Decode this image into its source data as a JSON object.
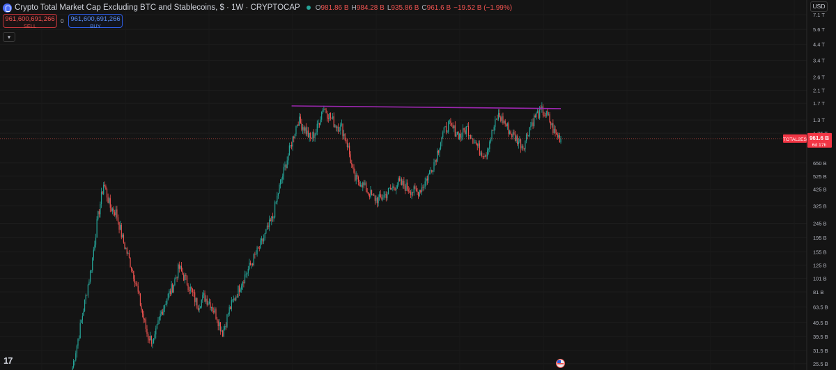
{
  "header": {
    "title": "Crypto Total Market Cap Excluding BTC and Stablecoins, $ · 1W · CRYPTOCAP",
    "open_key": "O",
    "open": "981.86 B",
    "high_key": "H",
    "high": "984.28 B",
    "low_key": "L",
    "low": "935.86 B",
    "close_key": "C",
    "close": "961.6 B",
    "change": "−19.52 B (−1.99%)"
  },
  "trade": {
    "sell_price": "961,600,691,266",
    "sell_label": "SELL",
    "spread": "0",
    "buy_price": "961,600,691,266",
    "buy_label": "BUY"
  },
  "currency": "USD",
  "logo_text": "17",
  "colors": {
    "background": "#141414",
    "up": "#26a69a",
    "down": "#ef5350",
    "trendline": "#9c27b0",
    "price_label": "#f23645"
  },
  "chart_data": {
    "type": "candlestick",
    "symbol": "TOTAL2ES",
    "timeframe": "1W",
    "scale": "log",
    "y_ticks": [
      "7.1 T",
      "5.6 T",
      "4.4 T",
      "3.4 T",
      "2.6 T",
      "2.1 T",
      "1.7 T",
      "1.3 T",
      "1.05 T",
      "650 B",
      "525 B",
      "425 B",
      "325 B",
      "245 B",
      "195 B",
      "155 B",
      "125 B",
      "101 B",
      "81 B",
      "63.5 B",
      "49.5 B",
      "39.5 B",
      "31.5 B",
      "25.5 B"
    ],
    "y_tick_values": [
      7100,
      5600,
      4400,
      3400,
      2600,
      2100,
      1700,
      1300,
      1050,
      650,
      525,
      425,
      325,
      245,
      195,
      155,
      125,
      101,
      81,
      63.5,
      49.5,
      39.5,
      31.5,
      25.5
    ],
    "ylim_billions": [
      23,
      9000
    ],
    "last_price_billions": 961.6,
    "last_price_label": "961.6 B",
    "countdown": "6d 17h",
    "series_label": "TOTAL2ES",
    "path_billions": [
      24,
      40,
      70,
      120,
      260,
      470,
      320,
      290,
      190,
      140,
      100,
      62,
      40,
      36,
      55,
      72,
      88,
      120,
      100,
      82,
      65,
      75,
      68,
      55,
      42,
      60,
      75,
      95,
      115,
      140,
      170,
      215,
      270,
      430,
      620,
      900,
      1300,
      1150,
      950,
      1100,
      1600,
      1400,
      1200,
      1150,
      850,
      500,
      480,
      420,
      370,
      360,
      390,
      430,
      470,
      450,
      420,
      400,
      450,
      550,
      700,
      1000,
      1200,
      1100,
      1000,
      1150,
      960,
      800,
      750,
      1050,
      1400,
      1250,
      1050,
      950,
      850,
      1150,
      1400,
      1500,
      1350,
      1050,
      960
    ],
    "trendline": {
      "start_billions": 1630,
      "end_billions": 1560,
      "start_index": 35,
      "end_index": 78
    }
  }
}
